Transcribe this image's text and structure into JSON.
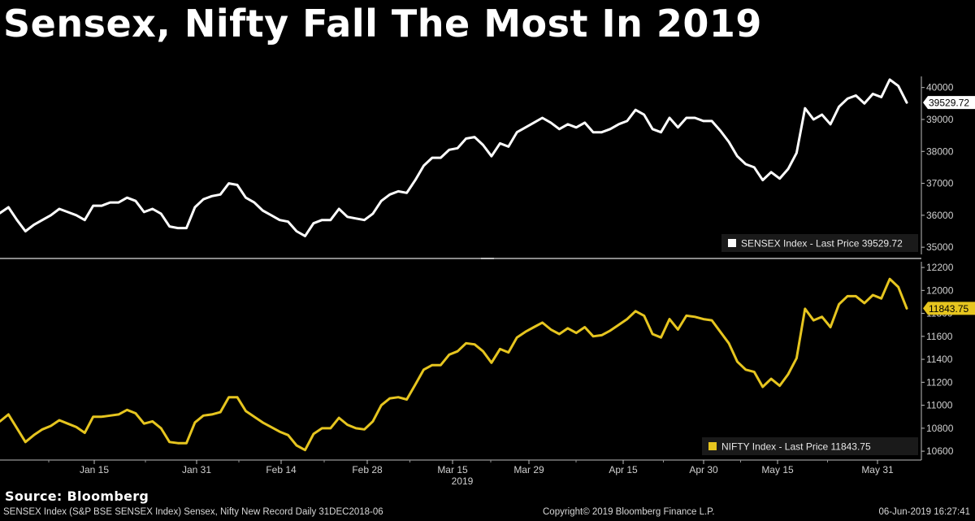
{
  "title": "Sensex, Nifty Fall The Most In 2019",
  "source": "Source: Bloomberg",
  "footer": {
    "left": "SENSEX Index (S&P BSE SENSEX Index) Sensex, Nifty New Record  Daily 31DEC2018-06",
    "center": "Copyright© 2019 Bloomberg Finance L.P.",
    "right": "06-Jun-2019 16:27:41"
  },
  "colors": {
    "background": "#000000",
    "sensex_line": "#ffffff",
    "nifty_line": "#e6c51f",
    "axis": "#cccccc"
  },
  "chart_data": [
    {
      "type": "line",
      "ylim": [
        34800,
        40450
      ],
      "y_ticks": [
        35000,
        36000,
        37000,
        38000,
        39000,
        40000
      ],
      "y_tick_labels": [
        "35000",
        "36000",
        "37000",
        "38000",
        "39000",
        "40000"
      ],
      "last_value_label": "39529.72",
      "legend_position": "bottom-right",
      "series": [
        {
          "name": "SENSEX Index - Last Price 39529.72",
          "color": "#ffffff",
          "values": [
            36070,
            36250,
            35850,
            35500,
            35700,
            35850,
            36000,
            36200,
            36100,
            36000,
            35850,
            36300,
            36300,
            36400,
            36400,
            36550,
            36450,
            36100,
            36200,
            36050,
            35650,
            35600,
            35600,
            36250,
            36500,
            36600,
            36650,
            37000,
            36950,
            36550,
            36400,
            36150,
            36000,
            35850,
            35800,
            35500,
            35350,
            35750,
            35850,
            35850,
            36200,
            35950,
            35900,
            35850,
            36050,
            36450,
            36650,
            36750,
            36700,
            37100,
            37550,
            37800,
            37800,
            38050,
            38100,
            38400,
            38450,
            38200,
            37850,
            38250,
            38150,
            38600,
            38750,
            38900,
            39050,
            38900,
            38700,
            38850,
            38750,
            38900,
            38600,
            38600,
            38700,
            38850,
            38950,
            39300,
            39150,
            38700,
            38600,
            39050,
            38750,
            39050,
            39050,
            38950,
            38950,
            38650,
            38300,
            37850,
            37600,
            37500,
            37100,
            37350,
            37150,
            37450,
            37950,
            39350,
            39000,
            39150,
            38850,
            39400,
            39650,
            39750,
            39500,
            39800,
            39700,
            40250,
            40050,
            39529.72
          ]
        }
      ]
    },
    {
      "type": "line",
      "x_ticks": [
        "Jan 15",
        "Jan 31",
        "Feb 14",
        "Feb 28",
        "Mar 15",
        "Mar 29",
        "Apr 15",
        "Apr 30",
        "May 15",
        "May 31"
      ],
      "x_sublabel": "2019",
      "ylim": [
        10530,
        12250
      ],
      "y_ticks": [
        10600,
        10800,
        11000,
        11200,
        11400,
        11600,
        11800,
        12000,
        12200
      ],
      "y_tick_labels": [
        "10600",
        "10800",
        "11000",
        "11200",
        "11400",
        "11600",
        "11800",
        "12000",
        "12200"
      ],
      "last_value_label": "11843.75",
      "legend_position": "bottom-right",
      "series": [
        {
          "name": "NIFTY Index - Last Price 11843.75",
          "color": "#e6c51f",
          "values": [
            10860,
            10920,
            10800,
            10680,
            10740,
            10790,
            10820,
            10870,
            10840,
            10810,
            10760,
            10900,
            10900,
            10910,
            10920,
            10960,
            10930,
            10840,
            10860,
            10800,
            10680,
            10670,
            10670,
            10850,
            10910,
            10920,
            10940,
            11070,
            11070,
            10950,
            10900,
            10850,
            10810,
            10770,
            10740,
            10650,
            10610,
            10750,
            10800,
            10800,
            10890,
            10830,
            10800,
            10790,
            10860,
            11000,
            11060,
            11070,
            11050,
            11180,
            11310,
            11350,
            11350,
            11440,
            11470,
            11540,
            11530,
            11470,
            11370,
            11490,
            11460,
            11590,
            11640,
            11680,
            11720,
            11660,
            11620,
            11670,
            11630,
            11680,
            11600,
            11610,
            11650,
            11700,
            11750,
            11820,
            11780,
            11620,
            11590,
            11750,
            11660,
            11780,
            11770,
            11750,
            11740,
            11640,
            11540,
            11380,
            11310,
            11290,
            11160,
            11230,
            11170,
            11270,
            11410,
            11840,
            11740,
            11770,
            11680,
            11880,
            11950,
            11950,
            11890,
            11960,
            11930,
            12100,
            12030,
            11843.75
          ]
        }
      ]
    }
  ]
}
